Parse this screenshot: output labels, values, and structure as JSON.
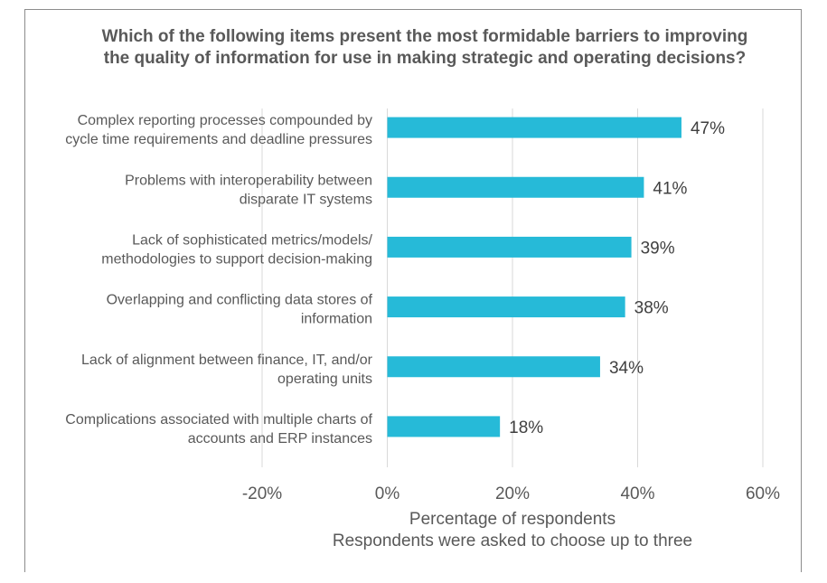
{
  "chart_data": {
    "type": "bar",
    "orientation": "horizontal",
    "title": "Which of the following items present the most formidable barriers to improving the quality of information for use in making strategic and operating decisions?",
    "categories": [
      [
        "Complex reporting processes compounded by",
        "cycle time requirements and deadline pressures"
      ],
      [
        "Problems with interoperability between",
        "disparate IT systems"
      ],
      [
        "Lack of sophisticated metrics/models/",
        "methodologies to support decision-making"
      ],
      [
        "Overlapping and conflicting data stores of",
        "information"
      ],
      [
        "Lack of alignment between finance, IT, and/or",
        "operating units"
      ],
      [
        "Complications associated with multiple charts of",
        "accounts and ERP instances"
      ]
    ],
    "values": [
      47,
      41,
      39,
      38,
      34,
      18
    ],
    "data_labels": [
      "47%",
      "41%",
      "39%",
      "38%",
      "34%",
      "18%"
    ],
    "xlim": [
      -20,
      60
    ],
    "xticks": [
      -20,
      0,
      20,
      40,
      60
    ],
    "xtick_labels": [
      "-20%",
      "0%",
      "20%",
      "40%",
      "60%"
    ],
    "xlabel": "Percentage of respondents",
    "xlabel_sub": "Respondents were asked to choose up to three",
    "grid": true,
    "bar_color": "#26BAD8",
    "grid_color": "#d9d9d9",
    "text_color": "#595959"
  }
}
